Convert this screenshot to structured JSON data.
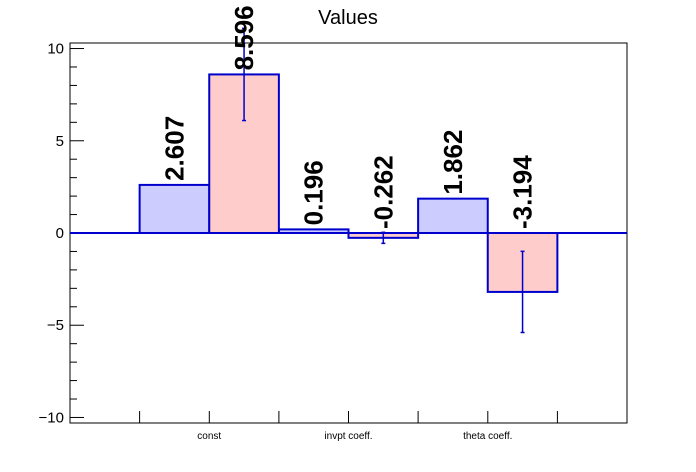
{
  "chart_data": {
    "type": "bar",
    "title": "Values",
    "categories": [
      "const",
      "invpt coeff.",
      "theta coeff."
    ],
    "series": [
      {
        "values": [
          2.607,
          0.196,
          1.862
        ],
        "errors": [
          0,
          0,
          0
        ],
        "labels": [
          "2.607",
          "0.196",
          "1.862"
        ],
        "fill": "#ccccff",
        "stroke": "#0000cc"
      },
      {
        "values": [
          8.596,
          -0.262,
          -3.194
        ],
        "errors": [
          2.5,
          0.3,
          2.2
        ],
        "labels": [
          "8.596",
          "-0.262",
          "-3.194"
        ],
        "fill": "#ffcccc",
        "stroke": "#0000cc"
      }
    ],
    "ylim": [
      -10.3,
      10.3
    ],
    "yticks": [
      -10,
      -5,
      0,
      5,
      10
    ],
    "ytick_labels": [
      "−10",
      "−5",
      "0",
      "5",
      "10"
    ],
    "xlabel": "",
    "ylabel": "",
    "grid": false,
    "legend": "none",
    "colors": {
      "axis": "#000000",
      "zero_line": "#0000cc",
      "error_bar": "#0000cc"
    }
  }
}
